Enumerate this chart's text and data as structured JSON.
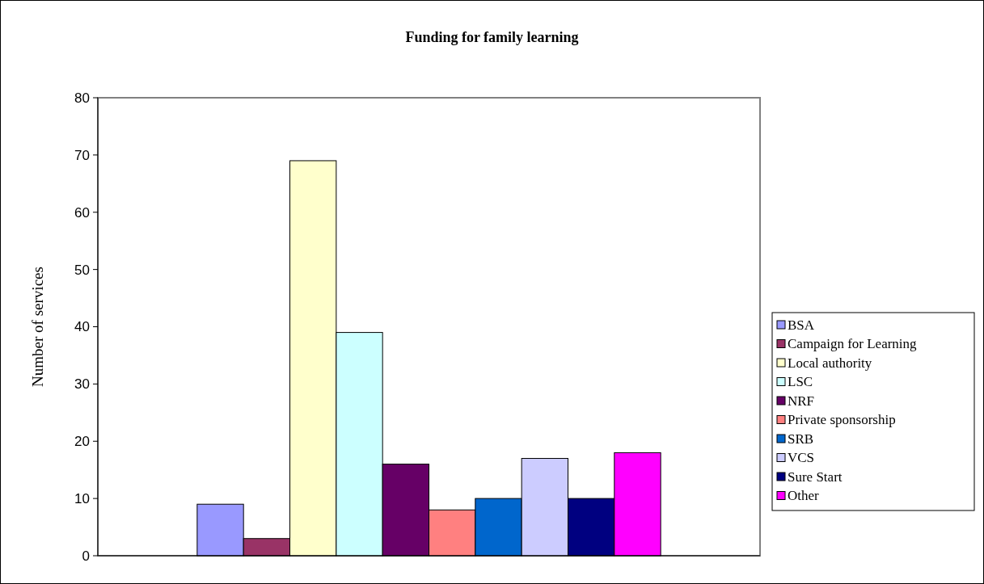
{
  "chart_data": {
    "type": "bar",
    "title": "Funding for family learning",
    "ylabel": "Number of services",
    "categories": [
      null
    ],
    "series": [
      {
        "name": "BSA",
        "color": "#9999ff",
        "values": [
          9
        ]
      },
      {
        "name": "Campaign for Learning",
        "color": "#993366",
        "values": [
          3
        ]
      },
      {
        "name": "Local authority",
        "color": "#ffffcc",
        "values": [
          69
        ]
      },
      {
        "name": "LSC",
        "color": "#ccffff",
        "values": [
          39
        ]
      },
      {
        "name": "NRF",
        "color": "#660066",
        "values": [
          16
        ]
      },
      {
        "name": "Private sponsorship",
        "color": "#ff8080",
        "values": [
          8
        ]
      },
      {
        "name": "SRB",
        "color": "#0066cc",
        "values": [
          10
        ]
      },
      {
        "name": "VCS",
        "color": "#ccccff",
        "values": [
          17
        ]
      },
      {
        "name": "Sure Start",
        "color": "#000080",
        "values": [
          10
        ]
      },
      {
        "name": "Other",
        "color": "#ff00ff",
        "values": [
          18
        ]
      }
    ],
    "ylim": [
      0,
      80
    ],
    "yticks": [
      0,
      10,
      20,
      30,
      40,
      50,
      60,
      70,
      80
    ],
    "grid": false,
    "legend": "right"
  }
}
